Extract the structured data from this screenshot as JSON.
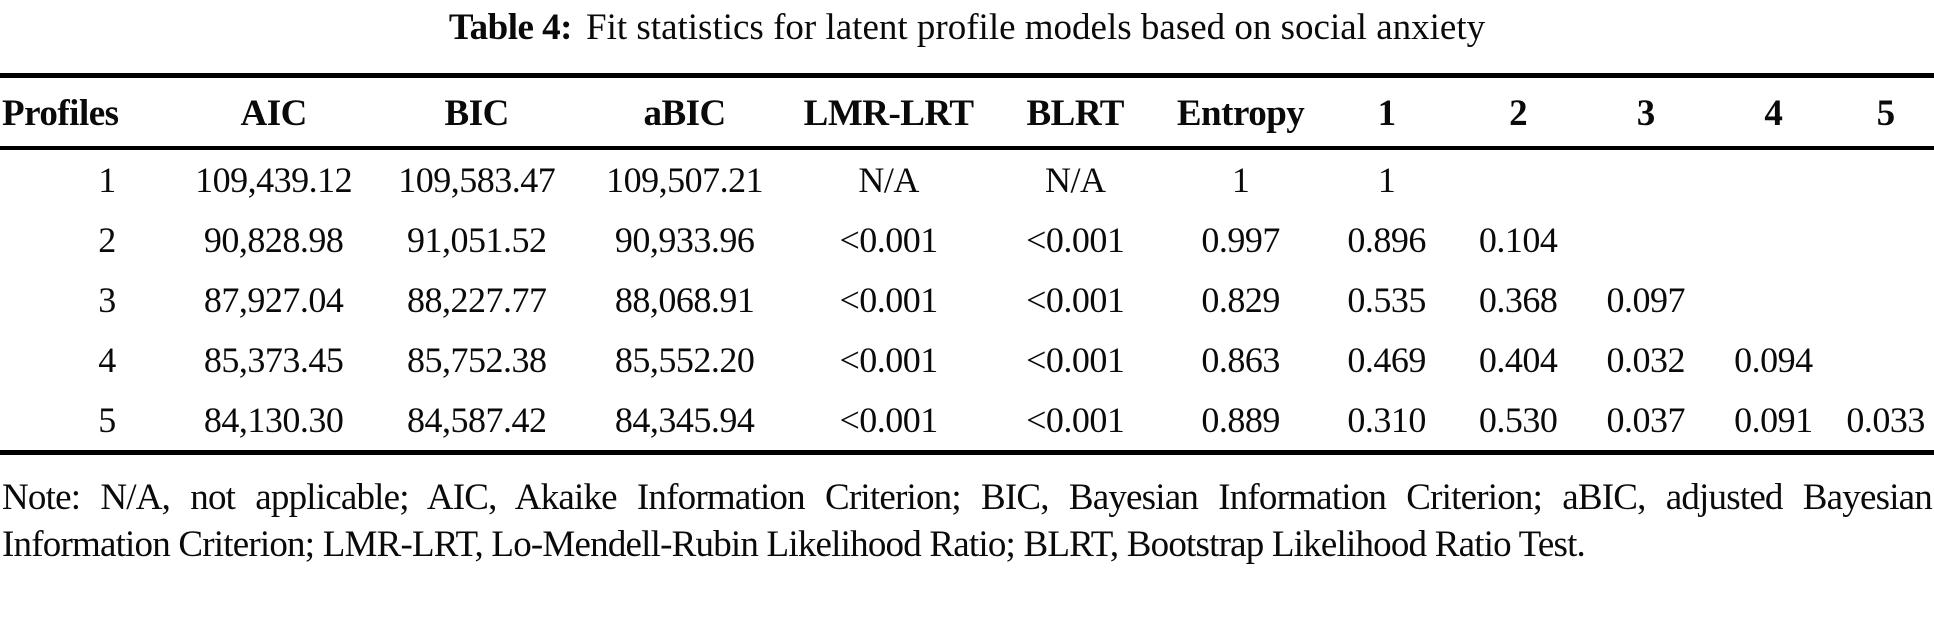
{
  "chart_data": {
    "type": "table",
    "title_label": "Table 4:",
    "title": "Fit statistics for latent profile models based on social anxiety",
    "columns": [
      "Profiles",
      "AIC",
      "BIC",
      "aBIC",
      "LMR-LRT",
      "BLRT",
      "Entropy",
      "1",
      "2",
      "3",
      "4",
      "5"
    ],
    "rows": [
      [
        "1",
        "109,439.12",
        "109,583.47",
        "109,507.21",
        "N/A",
        "N/A",
        "1",
        "1",
        "",
        "",
        "",
        ""
      ],
      [
        "2",
        "90,828.98",
        "91,051.52",
        "90,933.96",
        "<0.001",
        "<0.001",
        "0.997",
        "0.896",
        "0.104",
        "",
        "",
        ""
      ],
      [
        "3",
        "87,927.04",
        "88,227.77",
        "88,068.91",
        "<0.001",
        "<0.001",
        "0.829",
        "0.535",
        "0.368",
        "0.097",
        "",
        ""
      ],
      [
        "4",
        "85,373.45",
        "85,752.38",
        "85,552.20",
        "<0.001",
        "<0.001",
        "0.863",
        "0.469",
        "0.404",
        "0.032",
        "0.094",
        ""
      ],
      [
        "5",
        "84,130.30",
        "84,587.42",
        "84,345.94",
        "<0.001",
        "<0.001",
        "0.889",
        "0.310",
        "0.530",
        "0.037",
        "0.091",
        "0.033"
      ]
    ],
    "note": "Note: N/A, not applicable; AIC, Akaike Information Criterion; BIC, Bayesian Information Criterion; aBIC, adjusted Bayesian Information Criterion; LMR-LRT, Lo-Mendell-Rubin Likelihood Ratio; BLRT, Bootstrap Likelihood Ratio Test."
  }
}
